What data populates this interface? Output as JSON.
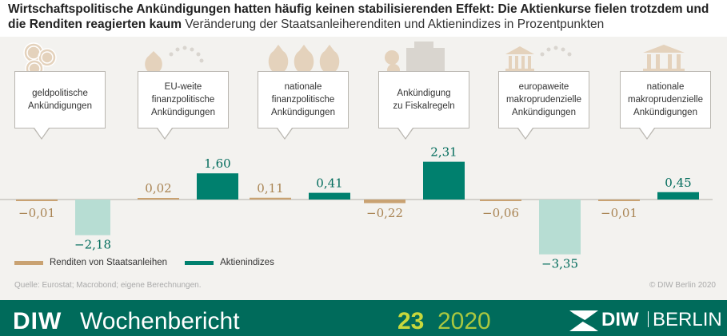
{
  "title": {
    "bold": "Wirtschaftspolitische Ankündigungen hatten häufig keinen stabilisierenden Effekt: Die Aktienkurse fielen trotzdem und die Renditen reagierten kaum",
    "subtitle": "Veränderung der Staatsanleiherenditen und Aktienindizes in Prozentpunkten"
  },
  "chart_data": {
    "type": "bar",
    "title": "Wirtschaftspolitische Ankündigungen hatten häufig keinen stabilisierenden Effekt: Die Aktienkurse fielen trotzdem und die Renditen reagierten kaum",
    "subtitle": "Veränderung der Staatsanleiherenditen und Aktienindizes in Prozentpunkten",
    "categories": [
      "geldpolitische\nAnkündigungen",
      "EU-weite\nfinanzpolitische\nAnkündigungen",
      "nationale\nfinanzpolitische\nAnkündigungen",
      "Ankündigung\nzu Fiskalregeln",
      "europaweite\nmakroprudenzielle\nAnkündigungen",
      "nationale\nmakroprudenzielle\nAnkündigungen"
    ],
    "series": [
      {
        "name": "Renditen von Staatsanleihen",
        "color": "#c9a272",
        "values": [
          -0.01,
          0.02,
          0.11,
          -0.22,
          -0.06,
          -0.01
        ],
        "labels": [
          "−0,01",
          "0,02",
          "0,11",
          "−0,22",
          "−0,06",
          "−0,01"
        ]
      },
      {
        "name": "Aktienindizes",
        "color": "#00806e",
        "negative_color": "#b7ddd3",
        "values": [
          -2.18,
          1.6,
          0.41,
          2.31,
          -3.35,
          0.45
        ],
        "labels": [
          "−2,18",
          "1,60",
          "0,41",
          "2,31",
          "−3,35",
          "0,45"
        ]
      }
    ],
    "ylim": [
      -3.35,
      2.31
    ],
    "grid": false,
    "legend": "bottom-left"
  },
  "legend": {
    "item1": "Renditen von Staatsanleihen",
    "item2": "Aktienindizes"
  },
  "source": "Quelle: Eurostat; Macrobond; eigene Berechnungen.",
  "copyright": "© DIW Berlin 2020",
  "footer": {
    "brand_diw": "DIW",
    "brand_wochenbericht": "Wochenbericht",
    "issue_number": "23",
    "issue_year": "2020",
    "logo_diw": "DIW",
    "logo_berlin": "BERLIN"
  },
  "colors": {
    "yield": "#c9a272",
    "stock": "#00806e",
    "stock_negative": "#b7ddd3",
    "footer": "#006b5b",
    "issue": "#c7d83c"
  },
  "icons": [
    "coins-euro-icon",
    "moneybag-stars-icon",
    "moneybags-euro-icon",
    "cash-register-coins-icon",
    "bank-stars-icon",
    "bank-icon"
  ]
}
